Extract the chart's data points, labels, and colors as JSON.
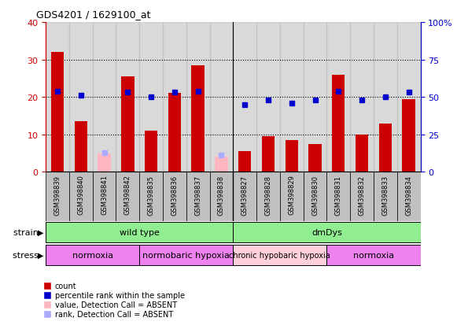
{
  "title": "GDS4201 / 1629100_at",
  "samples": [
    "GSM398839",
    "GSM398840",
    "GSM398841",
    "GSM398842",
    "GSM398835",
    "GSM398836",
    "GSM398837",
    "GSM398838",
    "GSM398827",
    "GSM398828",
    "GSM398829",
    "GSM398830",
    "GSM398831",
    "GSM398832",
    "GSM398833",
    "GSM398834"
  ],
  "counts": [
    32.0,
    13.5,
    null,
    25.5,
    11.0,
    21.0,
    28.5,
    null,
    5.5,
    9.5,
    8.5,
    7.5,
    26.0,
    10.0,
    13.0,
    19.5
  ],
  "counts_absent": [
    null,
    null,
    5.0,
    null,
    null,
    null,
    null,
    4.0,
    null,
    null,
    null,
    null,
    null,
    null,
    null,
    null
  ],
  "percentile_pct": [
    54.0,
    51.0,
    null,
    53.0,
    50.0,
    53.0,
    54.0,
    null,
    45.0,
    48.0,
    46.0,
    48.0,
    54.0,
    48.0,
    50.0,
    53.0
  ],
  "percentile_absent_pct": [
    null,
    null,
    13.0,
    null,
    null,
    null,
    null,
    11.0,
    null,
    null,
    null,
    null,
    null,
    null,
    null,
    null
  ],
  "ylim_left": [
    0,
    40
  ],
  "ylim_right": [
    0,
    100
  ],
  "yticks_left": [
    0,
    10,
    20,
    30,
    40
  ],
  "yticks_right": [
    0,
    25,
    50,
    75,
    100
  ],
  "strain_groups": [
    {
      "label": "wild type",
      "start": 0,
      "end": 8,
      "color": "#90EE90"
    },
    {
      "label": "dmDys",
      "start": 8,
      "end": 16,
      "color": "#90EE90"
    }
  ],
  "stress_groups": [
    {
      "label": "normoxia",
      "start": 0,
      "end": 4,
      "color": "#EE82EE"
    },
    {
      "label": "normobaric hypoxia",
      "start": 4,
      "end": 8,
      "color": "#EE82EE"
    },
    {
      "label": "chronic hypobaric hypoxia",
      "start": 8,
      "end": 12,
      "color": "#FFD0DC"
    },
    {
      "label": "normoxia",
      "start": 12,
      "end": 16,
      "color": "#EE82EE"
    }
  ],
  "bar_color": "#CC0000",
  "bar_absent_color": "#FFB6C1",
  "dot_color": "#0000CC",
  "dot_absent_color": "#AAAAFF",
  "background_color": "#FFFFFF",
  "grid_color": "#000000",
  "axis_color_left": "#CC0000",
  "axis_color_right": "#0000CC",
  "bar_width": 0.55,
  "sample_bg": "#C0C0C0"
}
